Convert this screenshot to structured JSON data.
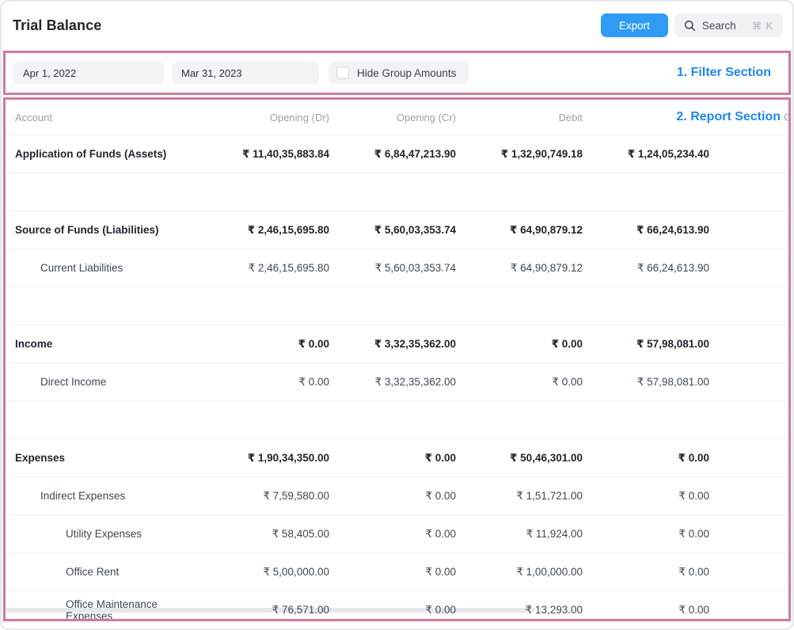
{
  "header": {
    "title": "Trial Balance",
    "export_label": "Export",
    "search": {
      "label": "Search",
      "shortcut": "⌘ K"
    }
  },
  "filters": {
    "from_date": "Apr 1, 2022",
    "to_date": "Mar 31, 2023",
    "hide_group_amounts_label": "Hide Group Amounts",
    "hide_group_amounts_checked": false
  },
  "annotations": {
    "filter": "1. Filter Section",
    "report": "2. Report Section",
    "box_border_color": "#d07a9e",
    "text_color": "#1e88f0"
  },
  "report": {
    "columns": [
      "Account",
      "Opening (Dr)",
      "Opening (Cr)",
      "Debit",
      ""
    ],
    "partial_column_header": "C",
    "rows": [
      {
        "label": "Application of Funds (Assets)",
        "indent": 0,
        "bold": true,
        "values": [
          "₹ 11,40,35,883.84",
          "₹ 6,84,47,213.90",
          "₹ 1,32,90,749.18",
          "₹ 1,24,05,234.40"
        ]
      },
      {
        "label": "",
        "indent": 0,
        "bold": false,
        "values": [
          "",
          "",
          "",
          ""
        ]
      },
      {
        "label": "Source of Funds (Liabilities)",
        "indent": 0,
        "bold": true,
        "values": [
          "₹ 2,46,15,695.80",
          "₹ 5,60,03,353.74",
          "₹ 64,90,879.12",
          "₹ 66,24,613.90"
        ]
      },
      {
        "label": "Current Liabilities",
        "indent": 1,
        "bold": false,
        "values": [
          "₹ 2,46,15,695.80",
          "₹ 5,60,03,353.74",
          "₹ 64,90,879.12",
          "₹ 66,24,613.90"
        ]
      },
      {
        "label": "",
        "indent": 0,
        "bold": false,
        "values": [
          "",
          "",
          "",
          ""
        ]
      },
      {
        "label": "Income",
        "indent": 0,
        "bold": true,
        "values": [
          "₹ 0.00",
          "₹ 3,32,35,362.00",
          "₹ 0.00",
          "₹ 57,98,081.00"
        ]
      },
      {
        "label": "Direct Income",
        "indent": 1,
        "bold": false,
        "values": [
          "₹ 0.00",
          "₹ 3,32,35,362.00",
          "₹ 0.00",
          "₹ 57,98,081.00"
        ]
      },
      {
        "label": "",
        "indent": 0,
        "bold": false,
        "values": [
          "",
          "",
          "",
          ""
        ]
      },
      {
        "label": "Expenses",
        "indent": 0,
        "bold": true,
        "values": [
          "₹ 1,90,34,350.00",
          "₹ 0.00",
          "₹ 50,46,301.00",
          "₹ 0.00"
        ]
      },
      {
        "label": "Indirect Expenses",
        "indent": 1,
        "bold": false,
        "values": [
          "₹ 7,59,580.00",
          "₹ 0.00",
          "₹ 1,51,721.00",
          "₹ 0.00"
        ]
      },
      {
        "label": "Utility Expenses",
        "indent": 2,
        "bold": false,
        "values": [
          "₹ 58,405.00",
          "₹ 0.00",
          "₹ 11,924.00",
          "₹ 0.00"
        ]
      },
      {
        "label": "Office Rent",
        "indent": 2,
        "bold": false,
        "values": [
          "₹ 5,00,000.00",
          "₹ 0.00",
          "₹ 1,00,000.00",
          "₹ 0.00"
        ]
      },
      {
        "label": "Office Maintenance Expenses",
        "indent": 2,
        "bold": false,
        "values": [
          "₹ 76,571.00",
          "₹ 0.00",
          "₹ 13,293.00",
          "₹ 0.00"
        ]
      }
    ]
  },
  "colors": {
    "accent_blue": "#2f9bf2",
    "annotation_blue": "#1e88f0",
    "annotation_pink": "#d07a9e"
  }
}
